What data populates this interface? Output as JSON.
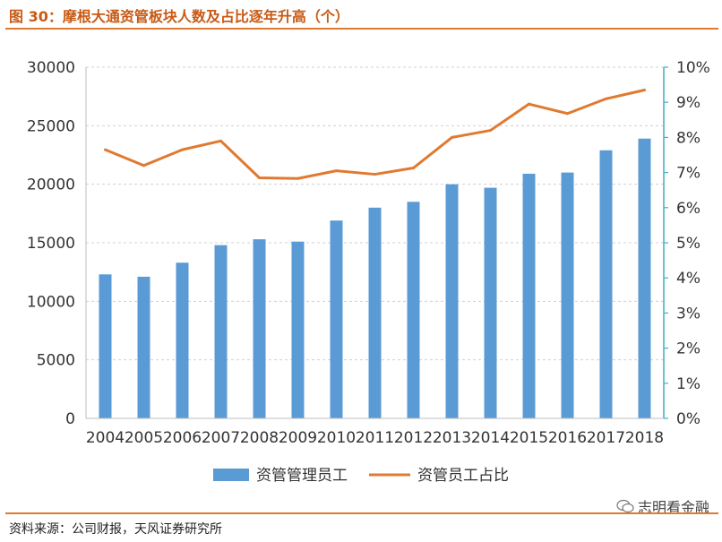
{
  "header": {
    "title": "图 30：摩根大通资管板块人数及占比逐年升高（个）"
  },
  "footer": {
    "source": "资料来源：公司财报，天风证券研究所",
    "watermark": "志明看金融"
  },
  "colors": {
    "bar": "#5b9bd5",
    "line": "#e07a30",
    "right_axis": "#3fb0c4",
    "accent": "#c85a14"
  },
  "chart_data": {
    "type": "bar",
    "categories": [
      "2004",
      "2005",
      "2006",
      "2007",
      "2008",
      "2009",
      "2010",
      "2011",
      "2012",
      "2013",
      "2014",
      "2015",
      "2016",
      "2017",
      "2018"
    ],
    "series": [
      {
        "name": "资管管理员工",
        "type": "bar",
        "axis": "left",
        "values": [
          12300,
          12100,
          13300,
          14800,
          15300,
          15100,
          16900,
          18000,
          18500,
          20000,
          19700,
          20900,
          21000,
          22900,
          23900
        ]
      },
      {
        "name": "资管员工占比",
        "type": "line",
        "axis": "right",
        "values": [
          0.0765,
          0.072,
          0.0765,
          0.079,
          0.0685,
          0.0683,
          0.0705,
          0.0695,
          0.0713,
          0.08,
          0.082,
          0.0895,
          0.0868,
          0.091,
          0.0935
        ]
      }
    ],
    "y_left": {
      "min": 0,
      "max": 30000,
      "ticks": [
        "0",
        "5000",
        "10000",
        "15000",
        "20000",
        "25000",
        "30000"
      ]
    },
    "y_right": {
      "min": 0,
      "max": 0.1,
      "ticks": [
        "0%",
        "1%",
        "2%",
        "3%",
        "4%",
        "5%",
        "6%",
        "7%",
        "8%",
        "9%",
        "10%"
      ]
    },
    "grid": true,
    "legend_position": "bottom"
  }
}
